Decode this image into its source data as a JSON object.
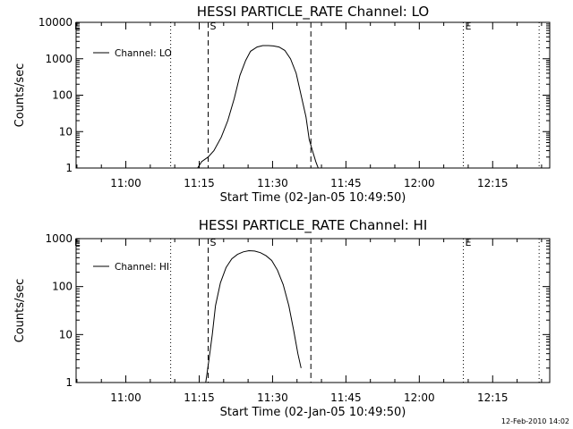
{
  "footer": {
    "timestamp": "12-Feb-2010 14:02"
  },
  "chart_data": [
    {
      "type": "line",
      "title": "HESSI PARTICLE_RATE Channel: LO",
      "xlabel": "Start Time (02-Jan-05 10:49:50)",
      "ylabel": "Counts/sec",
      "yscale": "log",
      "ylim": [
        1,
        10000
      ],
      "xlim": [
        "10:49:50",
        "12:26:40"
      ],
      "x_ticks": [
        "11:00",
        "11:15",
        "11:30",
        "11:45",
        "12:00",
        "12:15"
      ],
      "y_ticks": [
        "1",
        "10",
        "100",
        "1000",
        "10000"
      ],
      "legend": {
        "position": "top-left",
        "entries": [
          "Channel: LO"
        ]
      },
      "series": [
        {
          "name": "Channel: LO",
          "x": [
            "11:12:20",
            "11:14:40",
            "11:15:30",
            "11:16:50",
            "11:18:00",
            "11:19:30",
            "11:20:50",
            "11:22:10",
            "11:23:20",
            "11:24:30",
            "11:25:30",
            "11:26:50",
            "11:28:00",
            "11:29:10",
            "11:30:10",
            "11:31:20",
            "11:32:30",
            "11:33:40",
            "11:34:50",
            "11:35:50",
            "11:36:50",
            "11:37:30",
            "11:38:10",
            "11:38:50",
            "11:39:20",
            "11:39:50"
          ],
          "y": [
            1,
            1,
            1.5,
            2,
            3,
            7,
            20,
            80,
            350,
            900,
            1600,
            2100,
            2300,
            2300,
            2250,
            2100,
            1700,
            1000,
            400,
            100,
            25,
            6,
            3,
            1.5,
            1,
            1
          ]
        }
      ],
      "vlines": [
        {
          "label": "",
          "x": "11:09:10",
          "style": "dotted"
        },
        {
          "label": "S",
          "x": "11:16:50",
          "style": "dashed"
        },
        {
          "label": "",
          "x": "11:37:50",
          "style": "dashed"
        },
        {
          "label": "E",
          "x": "12:09:00",
          "style": "dotted"
        },
        {
          "label": "",
          "x": "12:24:30",
          "style": "dotted"
        }
      ],
      "corner_mark": "E"
    },
    {
      "type": "line",
      "title": "HESSI PARTICLE_RATE Channel: HI",
      "xlabel": "Start Time (02-Jan-05 10:49:50)",
      "ylabel": "Counts/sec",
      "yscale": "log",
      "ylim": [
        1,
        1000
      ],
      "xlim": [
        "10:49:50",
        "12:26:40"
      ],
      "x_ticks": [
        "11:00",
        "11:15",
        "11:30",
        "11:45",
        "12:00",
        "12:15"
      ],
      "y_ticks": [
        "1",
        "10",
        "100",
        "1000"
      ],
      "legend": {
        "position": "top-left",
        "entries": [
          "Channel: HI"
        ]
      },
      "series": [
        {
          "name": "Channel: HI",
          "x": [
            "11:16:20",
            "11:17:00",
            "11:17:40",
            "11:18:20",
            "11:19:20",
            "11:20:30",
            "11:21:40",
            "11:22:50",
            "11:24:00",
            "11:25:10",
            "11:26:20",
            "11:27:30",
            "11:28:40",
            "11:29:50",
            "11:31:00",
            "11:32:10",
            "11:33:20",
            "11:34:20",
            "11:35:10",
            "11:35:50"
          ],
          "y": [
            1,
            3,
            10,
            40,
            120,
            250,
            380,
            470,
            530,
            560,
            550,
            510,
            440,
            350,
            220,
            110,
            40,
            12,
            4,
            2
          ]
        }
      ],
      "vlines": [
        {
          "label": "",
          "x": "11:09:10",
          "style": "dotted"
        },
        {
          "label": "S",
          "x": "11:16:50",
          "style": "dashed"
        },
        {
          "label": "",
          "x": "11:37:50",
          "style": "dashed"
        },
        {
          "label": "E",
          "x": "12:09:00",
          "style": "dotted"
        },
        {
          "label": "",
          "x": "12:24:30",
          "style": "dotted"
        }
      ],
      "corner_mark": "E"
    }
  ]
}
